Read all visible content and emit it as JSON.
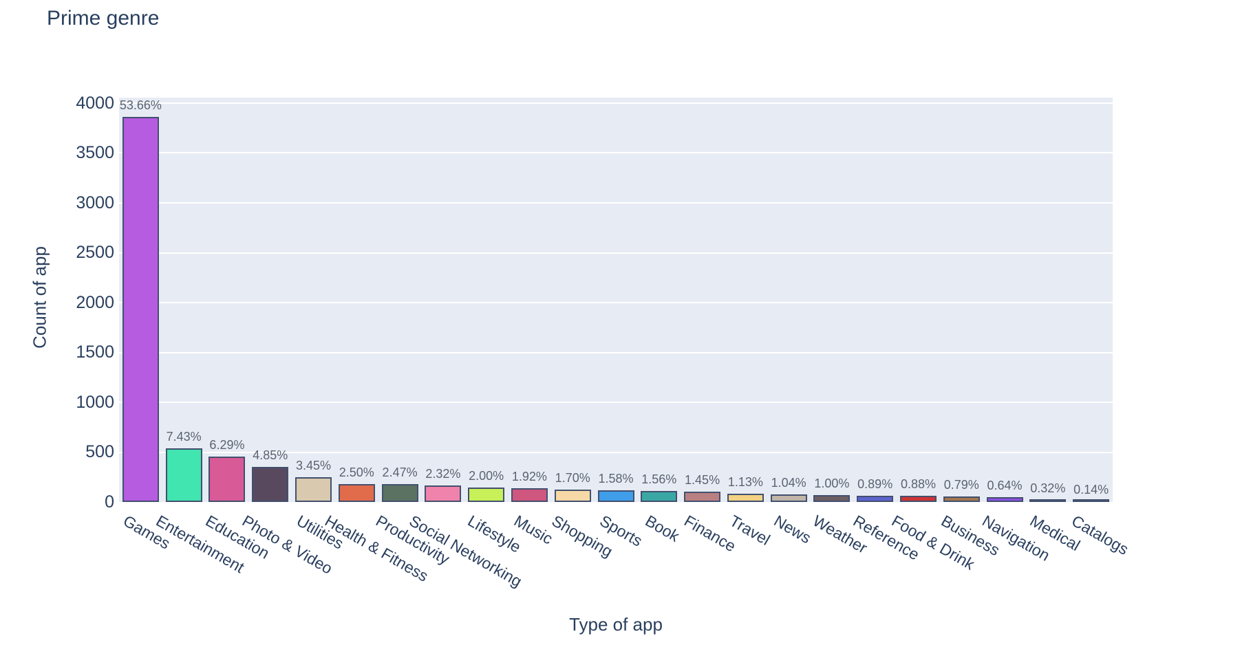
{
  "title": "Prime genre",
  "axes": {
    "x_label": "Type of app",
    "y_label": "Count of app",
    "y_ticks": [
      0,
      500,
      1000,
      1500,
      2000,
      2500,
      3000,
      3500,
      4000
    ]
  },
  "colors": {
    "plot_background": "#e7ecf4",
    "gridline": "#ffffff",
    "bar_border": "#42506e",
    "axis_text": "#2a3f5f",
    "value_label_text": "#5b6270",
    "page_background": "#ffffff"
  },
  "chart_data": {
    "type": "bar",
    "title": "Prime genre",
    "xlabel": "Type of app",
    "ylabel": "Count of app",
    "ylim": [
      0,
      4055
    ],
    "grid": true,
    "legend": false,
    "categories": [
      "Games",
      "Entertainment",
      "Education",
      "Photo & Video",
      "Utilities",
      "Health & Fitness",
      "Productivity",
      "Social Networking",
      "Lifestyle",
      "Music",
      "Shopping",
      "Sports",
      "Book",
      "Finance",
      "Travel",
      "News",
      "Weather",
      "Reference",
      "Food & Drink",
      "Business",
      "Navigation",
      "Medical",
      "Catalogs"
    ],
    "values": [
      3862,
      535,
      453,
      349,
      248,
      180,
      178,
      167,
      144,
      138,
      122,
      114,
      112,
      104,
      81,
      75,
      72,
      64,
      63,
      57,
      46,
      23,
      10
    ],
    "value_labels": [
      "53.66%",
      "7.43%",
      "6.29%",
      "4.85%",
      "3.45%",
      "2.50%",
      "2.47%",
      "2.32%",
      "2.00%",
      "1.92%",
      "1.70%",
      "1.58%",
      "1.56%",
      "1.45%",
      "1.13%",
      "1.04%",
      "1.00%",
      "0.89%",
      "0.88%",
      "0.79%",
      "0.64%",
      "0.32%",
      "0.14%"
    ],
    "bar_colors": [
      "#b55ce1",
      "#40e5b0",
      "#d85a97",
      "#59495f",
      "#d9c9ae",
      "#e16c4c",
      "#5b7263",
      "#f083ab",
      "#c7f059",
      "#ce567f",
      "#f6d9a6",
      "#3f9de9",
      "#3aa7a4",
      "#ba8081",
      "#f3d285",
      "#c1b5aa",
      "#6c5f64",
      "#5d63d0",
      "#ce3434",
      "#a4774e",
      "#8d50e4",
      "#4d5d98",
      "#4d6398"
    ]
  }
}
